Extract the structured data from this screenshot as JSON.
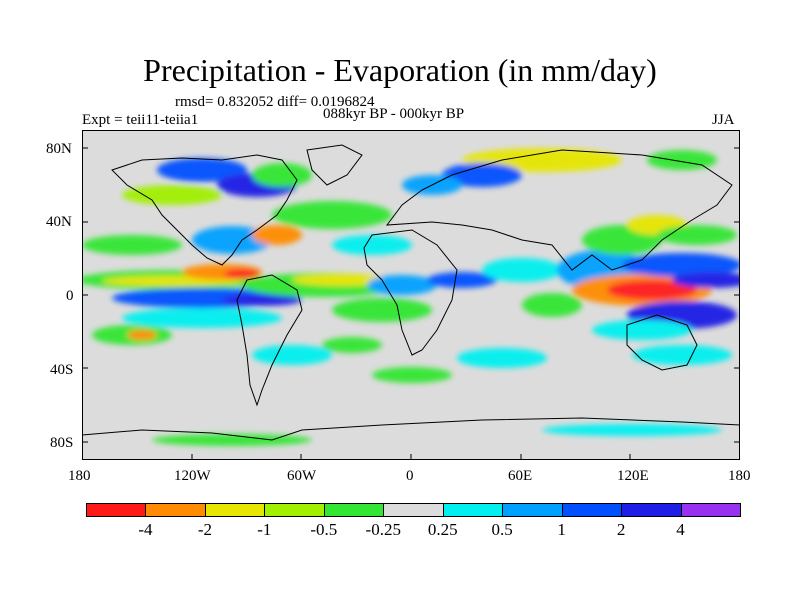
{
  "title": "Precipitation - Evaporation (in mm/day)",
  "stats_line": "rmsd= 0.832052 diff= 0.0196824",
  "period": "088kyr BP - 000kyr BP",
  "expt": "Expt = teii11-teiia1",
  "season": "JJA",
  "map": {
    "lat_labels": [
      "80N",
      "40N",
      "0",
      "40S",
      "80S"
    ],
    "lon_labels": [
      "180",
      "120W",
      "60W",
      "0",
      "60E",
      "120E",
      "180"
    ]
  },
  "colorbar": {
    "colors": [
      "#ff1a1a",
      "#ff8c00",
      "#e6e600",
      "#a0f000",
      "#32e632",
      "#dcdcdc",
      "#00f0f0",
      "#00a0ff",
      "#0050ff",
      "#1e1ee6",
      "#9632f0"
    ],
    "labels": [
      "-4",
      "-2",
      "-1",
      "-0.5",
      "-0.25",
      "0.25",
      "0.5",
      "1",
      "2",
      "4"
    ]
  }
}
